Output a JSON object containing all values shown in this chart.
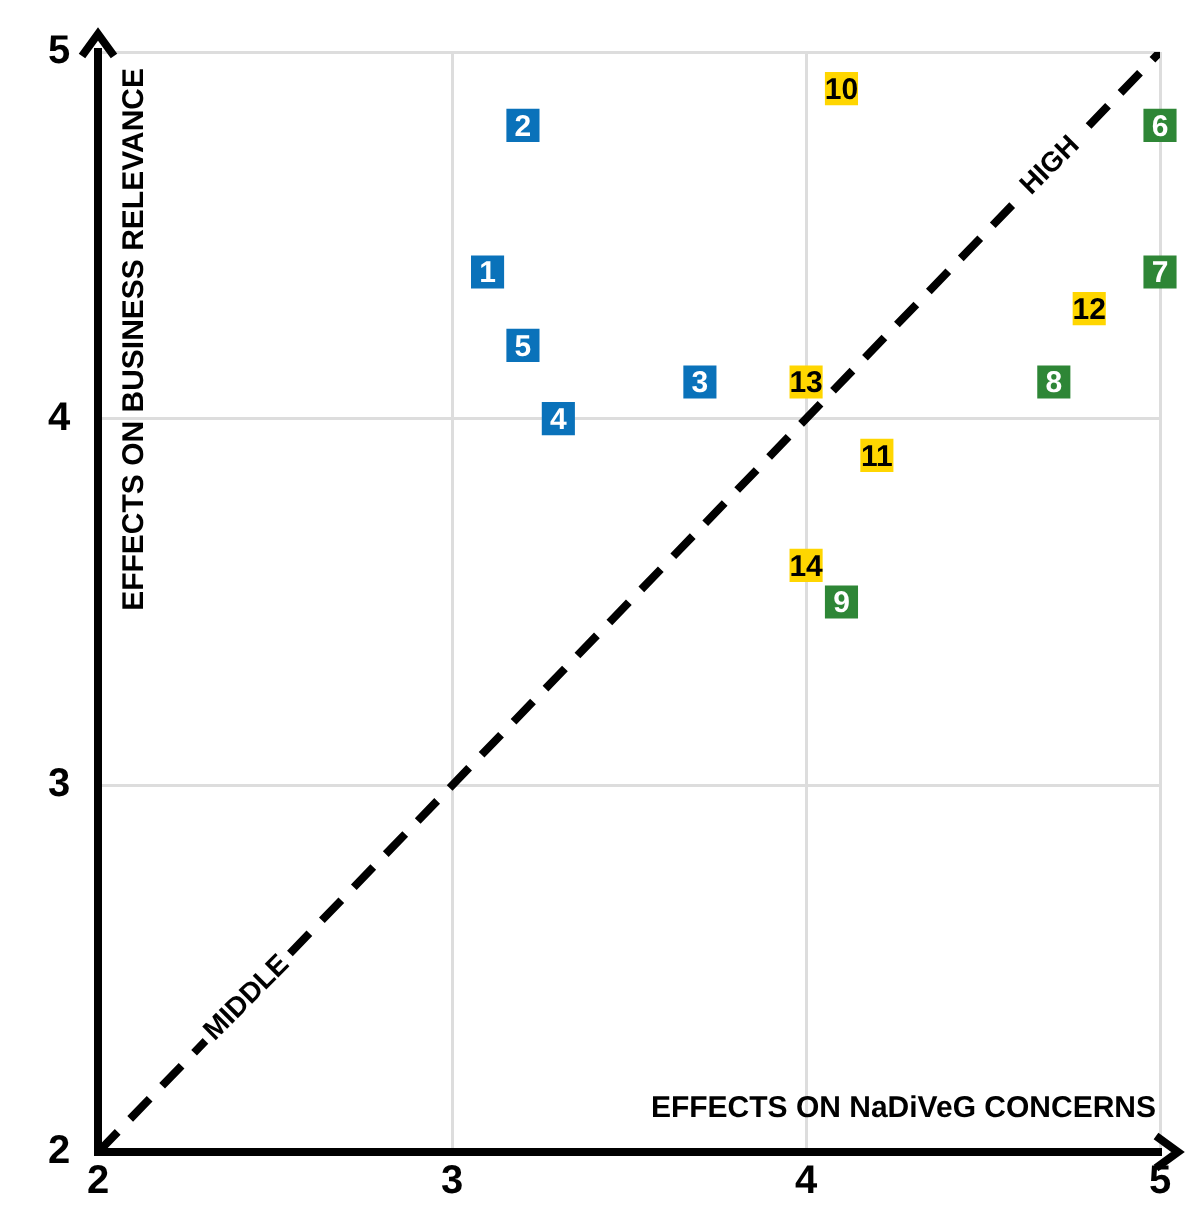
{
  "chart_data": {
    "type": "scatter",
    "xlabel": "EFFECTS ON NaDiVeG CONCERNS",
    "ylabel": "EFFECTS ON BUSINESS RELEVANCE",
    "xlim": [
      2,
      5
    ],
    "xticks": [
      2,
      3,
      4,
      5
    ],
    "ylim": [
      2,
      5
    ],
    "yticks": [
      2,
      3,
      4,
      5
    ],
    "grid": true,
    "legend": false,
    "marker": "square",
    "series": [
      {
        "color": "#0a72ba",
        "x": [
          3.1,
          3.2,
          3.7,
          3.3,
          3.2
        ],
        "values": [
          4.4,
          4.8,
          4.1,
          4.0,
          4.2
        ]
      },
      {
        "color": "#2e8636",
        "x": [
          5.0,
          5.0,
          4.7,
          4.1
        ],
        "values": [
          4.8,
          4.4,
          4.1,
          3.5
        ]
      },
      {
        "color": "#ffd600",
        "x": [
          4.1,
          4.2,
          4.8,
          4.0,
          4.0
        ],
        "values": [
          4.9,
          3.9,
          4.3,
          4.1,
          3.6
        ]
      },
      {
        "type": "line",
        "color": "#000000",
        "line_style": "dashed",
        "marker": "none",
        "x": [
          2,
          5
        ],
        "values": [
          2,
          5
        ]
      }
    ],
    "annotations": [
      {
        "text": "1",
        "x": 3.1,
        "y": 4.4
      },
      {
        "text": "2",
        "x": 3.2,
        "y": 4.8
      },
      {
        "text": "3",
        "x": 3.7,
        "y": 4.1
      },
      {
        "text": "4",
        "x": 3.3,
        "y": 4.0
      },
      {
        "text": "5",
        "x": 3.2,
        "y": 4.2
      },
      {
        "text": "6",
        "x": 5.0,
        "y": 4.8
      },
      {
        "text": "7",
        "x": 5.0,
        "y": 4.4
      },
      {
        "text": "8",
        "x": 4.7,
        "y": 4.1
      },
      {
        "text": "9",
        "x": 4.1,
        "y": 3.5
      },
      {
        "text": "10",
        "x": 4.1,
        "y": 4.9
      },
      {
        "text": "11",
        "x": 4.2,
        "y": 3.9
      },
      {
        "text": "12",
        "x": 4.8,
        "y": 4.3
      },
      {
        "text": "13",
        "x": 4.0,
        "y": 4.1
      },
      {
        "text": "14",
        "x": 4.0,
        "y": 3.6
      },
      {
        "text": "MIDDLE",
        "x": 2.42,
        "y": 2.42
      },
      {
        "text": "HIGH",
        "x": 4.69,
        "y": 4.69
      }
    ]
  }
}
